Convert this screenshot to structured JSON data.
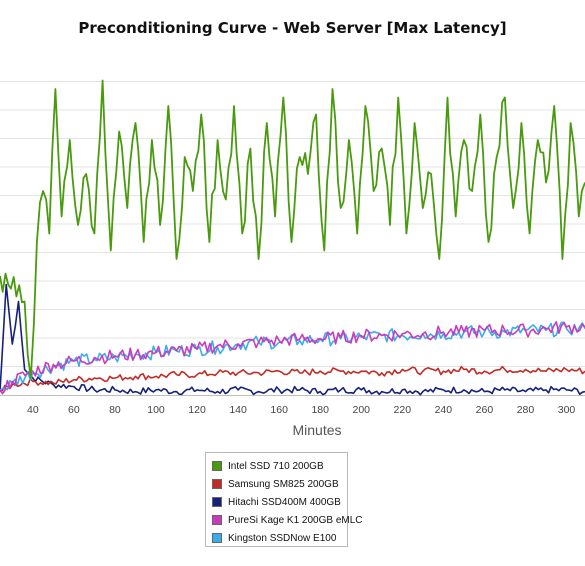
{
  "chart_data": {
    "type": "line",
    "title": "Preconditioning Curve - Web Server [Max Latency]",
    "xlabel": "Minutes",
    "ylabel": "",
    "xlim": [
      24,
      309
    ],
    "ylim": [
      0,
      200
    ],
    "x_ticks": [
      40,
      60,
      80,
      100,
      120,
      140,
      160,
      180,
      200,
      220,
      240,
      260,
      280,
      300
    ],
    "grid": true,
    "legend_position": "bottom",
    "series": [
      {
        "name": "Intel SSD 710 200GB",
        "color": "#4a9a0e",
        "x": [
          24,
          28,
          32,
          36,
          39,
          42,
          45,
          48,
          51,
          54,
          58,
          62,
          66,
          70,
          74,
          78,
          82,
          86,
          90,
          94,
          98,
          102,
          106,
          110,
          114,
          118,
          122,
          126,
          130,
          134,
          138,
          142,
          146,
          150,
          154,
          158,
          162,
          166,
          170,
          174,
          178,
          182,
          186,
          190,
          194,
          198,
          202,
          206,
          210,
          214,
          218,
          222,
          226,
          230,
          234,
          238,
          242,
          246,
          250,
          254,
          258,
          262,
          266,
          270,
          274,
          278,
          282,
          286,
          290,
          294,
          298,
          302,
          306,
          309
        ],
        "values": [
          70,
          65,
          58,
          55,
          10,
          90,
          120,
          95,
          180,
          105,
          150,
          100,
          130,
          95,
          185,
          85,
          155,
          110,
          160,
          90,
          150,
          100,
          170,
          80,
          140,
          120,
          165,
          90,
          150,
          115,
          170,
          95,
          145,
          80,
          160,
          105,
          175,
          90,
          140,
          130,
          165,
          85,
          180,
          110,
          150,
          95,
          170,
          120,
          145,
          100,
          175,
          95,
          160,
          110,
          130,
          80,
          175,
          105,
          150,
          120,
          165,
          90,
          140,
          175,
          110,
          160,
          95,
          150,
          125,
          170,
          80,
          160,
          105,
          125
        ]
      },
      {
        "name": "Samsung SM825 200GB",
        "color": "#c32b25",
        "x": [
          24,
          30,
          40,
          50,
          60,
          70,
          80,
          90,
          100,
          110,
          120,
          130,
          140,
          150,
          160,
          170,
          180,
          190,
          200,
          210,
          220,
          230,
          240,
          250,
          260,
          270,
          280,
          290,
          300,
          309
        ],
        "values": [
          2,
          6,
          8,
          7,
          9,
          10,
          10,
          11,
          11,
          12,
          12,
          13,
          13,
          13,
          14,
          13,
          14,
          14,
          14,
          13,
          15,
          14,
          14,
          15,
          14,
          15,
          15,
          14,
          15,
          14
        ]
      },
      {
        "name": "Hitachi SSD400M 400GB",
        "color": "#15217a",
        "x": [
          24,
          27,
          30,
          33,
          36,
          40,
          50,
          60,
          70,
          80,
          90,
          100,
          110,
          120,
          130,
          140,
          150,
          160,
          170,
          180,
          190,
          200,
          210,
          220,
          230,
          240,
          250,
          260,
          270,
          280,
          290,
          300,
          309
        ],
        "values": [
          2,
          65,
          30,
          55,
          15,
          10,
          6,
          5,
          3,
          3,
          2,
          3,
          2,
          3,
          2,
          3,
          2,
          3,
          3,
          2,
          3,
          3,
          2,
          3,
          2,
          3,
          3,
          2,
          3,
          2,
          3,
          3,
          2
        ]
      },
      {
        "name": "PureSi Kage K1 200GB eMLC",
        "color": "#c93bbe",
        "x": [
          24,
          30,
          40,
          50,
          60,
          70,
          80,
          90,
          100,
          110,
          120,
          130,
          140,
          150,
          160,
          170,
          180,
          190,
          200,
          210,
          220,
          230,
          240,
          250,
          260,
          270,
          280,
          290,
          300,
          309
        ],
        "values": [
          3,
          8,
          14,
          18,
          20,
          22,
          23,
          24,
          25,
          26,
          27,
          29,
          30,
          31,
          32,
          33,
          33,
          34,
          35,
          35,
          36,
          36,
          37,
          37,
          38,
          38,
          38,
          39,
          40,
          40
        ]
      },
      {
        "name": "Kingston SSDNow E100",
        "color": "#3aacee",
        "x": [
          24,
          30,
          40,
          50,
          60,
          70,
          80,
          90,
          100,
          110,
          120,
          130,
          140,
          150,
          160,
          170,
          180,
          190,
          200,
          210,
          220,
          230,
          240,
          250,
          260,
          270,
          280,
          290,
          300,
          309
        ],
        "values": [
          3,
          7,
          13,
          17,
          20,
          21,
          22,
          24,
          25,
          26,
          27,
          28,
          30,
          31,
          31,
          32,
          33,
          33,
          34,
          35,
          35,
          36,
          36,
          37,
          37,
          37,
          38,
          38,
          39,
          39
        ]
      }
    ]
  }
}
